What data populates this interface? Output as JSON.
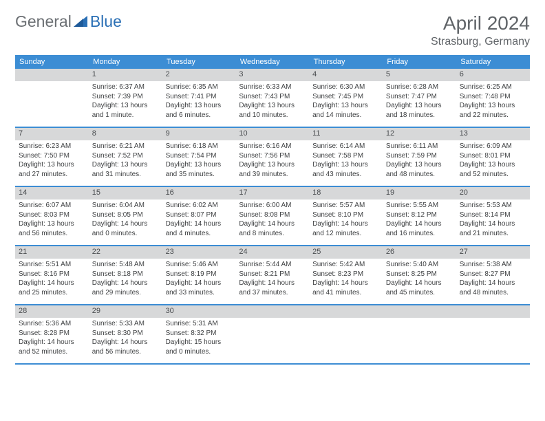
{
  "logo": {
    "text1": "General",
    "text2": "Blue",
    "icon_color": "#2a6fb5"
  },
  "header": {
    "month_title": "April 2024",
    "location": "Strasburg, Germany"
  },
  "colors": {
    "header_bg": "#3c8dd4",
    "date_bar_bg": "#d7d8d9",
    "row_border": "#3c8dd4",
    "text_dark": "#3e4042",
    "logo_gray": "#6b6f73",
    "logo_blue": "#2a6fb5"
  },
  "day_headers": [
    "Sunday",
    "Monday",
    "Tuesday",
    "Wednesday",
    "Thursday",
    "Friday",
    "Saturday"
  ],
  "weeks": [
    [
      {
        "date": "",
        "lines": []
      },
      {
        "date": "1",
        "lines": [
          "Sunrise: 6:37 AM",
          "Sunset: 7:39 PM",
          "Daylight: 13 hours and 1 minute."
        ]
      },
      {
        "date": "2",
        "lines": [
          "Sunrise: 6:35 AM",
          "Sunset: 7:41 PM",
          "Daylight: 13 hours and 6 minutes."
        ]
      },
      {
        "date": "3",
        "lines": [
          "Sunrise: 6:33 AM",
          "Sunset: 7:43 PM",
          "Daylight: 13 hours and 10 minutes."
        ]
      },
      {
        "date": "4",
        "lines": [
          "Sunrise: 6:30 AM",
          "Sunset: 7:45 PM",
          "Daylight: 13 hours and 14 minutes."
        ]
      },
      {
        "date": "5",
        "lines": [
          "Sunrise: 6:28 AM",
          "Sunset: 7:47 PM",
          "Daylight: 13 hours and 18 minutes."
        ]
      },
      {
        "date": "6",
        "lines": [
          "Sunrise: 6:25 AM",
          "Sunset: 7:48 PM",
          "Daylight: 13 hours and 22 minutes."
        ]
      }
    ],
    [
      {
        "date": "7",
        "lines": [
          "Sunrise: 6:23 AM",
          "Sunset: 7:50 PM",
          "Daylight: 13 hours and 27 minutes."
        ]
      },
      {
        "date": "8",
        "lines": [
          "Sunrise: 6:21 AM",
          "Sunset: 7:52 PM",
          "Daylight: 13 hours and 31 minutes."
        ]
      },
      {
        "date": "9",
        "lines": [
          "Sunrise: 6:18 AM",
          "Sunset: 7:54 PM",
          "Daylight: 13 hours and 35 minutes."
        ]
      },
      {
        "date": "10",
        "lines": [
          "Sunrise: 6:16 AM",
          "Sunset: 7:56 PM",
          "Daylight: 13 hours and 39 minutes."
        ]
      },
      {
        "date": "11",
        "lines": [
          "Sunrise: 6:14 AM",
          "Sunset: 7:58 PM",
          "Daylight: 13 hours and 43 minutes."
        ]
      },
      {
        "date": "12",
        "lines": [
          "Sunrise: 6:11 AM",
          "Sunset: 7:59 PM",
          "Daylight: 13 hours and 48 minutes."
        ]
      },
      {
        "date": "13",
        "lines": [
          "Sunrise: 6:09 AM",
          "Sunset: 8:01 PM",
          "Daylight: 13 hours and 52 minutes."
        ]
      }
    ],
    [
      {
        "date": "14",
        "lines": [
          "Sunrise: 6:07 AM",
          "Sunset: 8:03 PM",
          "Daylight: 13 hours and 56 minutes."
        ]
      },
      {
        "date": "15",
        "lines": [
          "Sunrise: 6:04 AM",
          "Sunset: 8:05 PM",
          "Daylight: 14 hours and 0 minutes."
        ]
      },
      {
        "date": "16",
        "lines": [
          "Sunrise: 6:02 AM",
          "Sunset: 8:07 PM",
          "Daylight: 14 hours and 4 minutes."
        ]
      },
      {
        "date": "17",
        "lines": [
          "Sunrise: 6:00 AM",
          "Sunset: 8:08 PM",
          "Daylight: 14 hours and 8 minutes."
        ]
      },
      {
        "date": "18",
        "lines": [
          "Sunrise: 5:57 AM",
          "Sunset: 8:10 PM",
          "Daylight: 14 hours and 12 minutes."
        ]
      },
      {
        "date": "19",
        "lines": [
          "Sunrise: 5:55 AM",
          "Sunset: 8:12 PM",
          "Daylight: 14 hours and 16 minutes."
        ]
      },
      {
        "date": "20",
        "lines": [
          "Sunrise: 5:53 AM",
          "Sunset: 8:14 PM",
          "Daylight: 14 hours and 21 minutes."
        ]
      }
    ],
    [
      {
        "date": "21",
        "lines": [
          "Sunrise: 5:51 AM",
          "Sunset: 8:16 PM",
          "Daylight: 14 hours and 25 minutes."
        ]
      },
      {
        "date": "22",
        "lines": [
          "Sunrise: 5:48 AM",
          "Sunset: 8:18 PM",
          "Daylight: 14 hours and 29 minutes."
        ]
      },
      {
        "date": "23",
        "lines": [
          "Sunrise: 5:46 AM",
          "Sunset: 8:19 PM",
          "Daylight: 14 hours and 33 minutes."
        ]
      },
      {
        "date": "24",
        "lines": [
          "Sunrise: 5:44 AM",
          "Sunset: 8:21 PM",
          "Daylight: 14 hours and 37 minutes."
        ]
      },
      {
        "date": "25",
        "lines": [
          "Sunrise: 5:42 AM",
          "Sunset: 8:23 PM",
          "Daylight: 14 hours and 41 minutes."
        ]
      },
      {
        "date": "26",
        "lines": [
          "Sunrise: 5:40 AM",
          "Sunset: 8:25 PM",
          "Daylight: 14 hours and 45 minutes."
        ]
      },
      {
        "date": "27",
        "lines": [
          "Sunrise: 5:38 AM",
          "Sunset: 8:27 PM",
          "Daylight: 14 hours and 48 minutes."
        ]
      }
    ],
    [
      {
        "date": "28",
        "lines": [
          "Sunrise: 5:36 AM",
          "Sunset: 8:28 PM",
          "Daylight: 14 hours and 52 minutes."
        ]
      },
      {
        "date": "29",
        "lines": [
          "Sunrise: 5:33 AM",
          "Sunset: 8:30 PM",
          "Daylight: 14 hours and 56 minutes."
        ]
      },
      {
        "date": "30",
        "lines": [
          "Sunrise: 5:31 AM",
          "Sunset: 8:32 PM",
          "Daylight: 15 hours and 0 minutes."
        ]
      },
      {
        "date": "",
        "lines": []
      },
      {
        "date": "",
        "lines": []
      },
      {
        "date": "",
        "lines": []
      },
      {
        "date": "",
        "lines": []
      }
    ]
  ]
}
